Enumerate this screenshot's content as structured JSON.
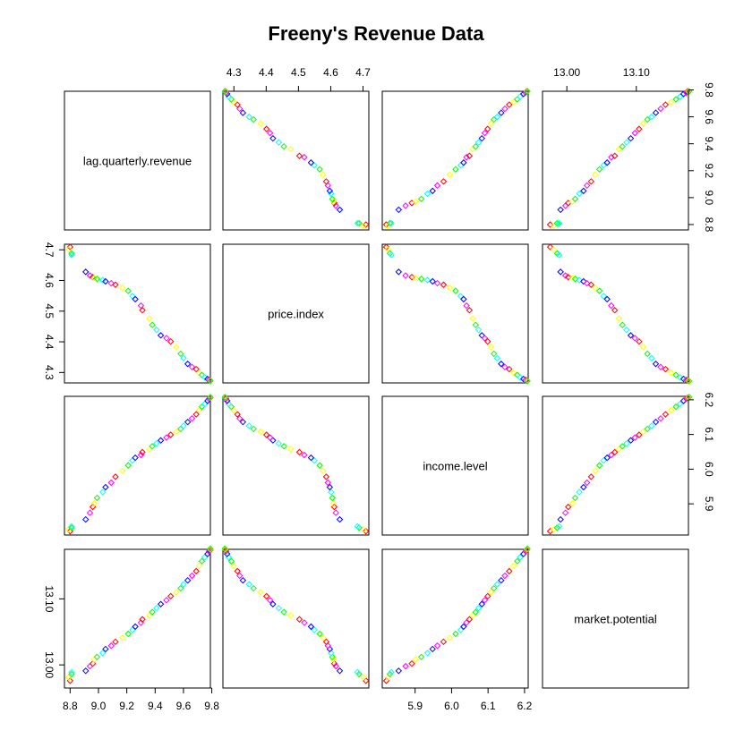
{
  "chart_data": {
    "type": "scatter",
    "title": "Freeny's Revenue Data",
    "variables": [
      "lag.quarterly.revenue",
      "price.index",
      "income.level",
      "market.potential"
    ],
    "ranges": {
      "lag.quarterly.revenue": [
        8.76,
        9.79
      ],
      "price.index": [
        4.266,
        4.718
      ],
      "income.level": [
        5.81,
        6.21
      ],
      "market.potential": [
        12.965,
        13.175
      ]
    },
    "ticks": {
      "lag.quarterly.revenue": [
        8.8,
        9.0,
        9.2,
        9.4,
        9.6,
        9.8
      ],
      "price.index": [
        4.3,
        4.4,
        4.5,
        4.6,
        4.7
      ],
      "income.level": [
        5.9,
        6.0,
        6.1,
        6.2
      ],
      "market.potential": [
        13.0,
        13.1
      ]
    },
    "tick_labels": {
      "lag.quarterly.revenue": [
        "8.8",
        "9.0",
        "9.2",
        "9.4",
        "9.6",
        "9.8"
      ],
      "price.index": [
        "4.3",
        "4.4",
        "4.5",
        "4.6",
        "4.7"
      ],
      "income.level": [
        "5.9",
        "6.0",
        "6.1",
        "6.2"
      ],
      "market.potential": [
        "13.00",
        "13.10"
      ]
    },
    "colors": [
      "#FF0000",
      "#FFFF00",
      "#00FF00",
      "#00FFFF",
      "#0000FF",
      "#FF00FF"
    ],
    "observations": [
      [
        8.8,
        4.709,
        5.821,
        12.976
      ],
      [
        8.79,
        4.701,
        5.826,
        12.981
      ],
      [
        8.81,
        4.688,
        5.831,
        12.986
      ],
      [
        8.81,
        4.683,
        5.835,
        12.989
      ],
      [
        8.91,
        4.628,
        5.855,
        12.991
      ],
      [
        8.94,
        4.616,
        5.874,
        12.998
      ],
      [
        8.96,
        4.611,
        5.891,
        13.002
      ],
      [
        8.97,
        4.608,
        5.901,
        13.008
      ],
      [
        8.99,
        4.605,
        5.917,
        13.012
      ],
      [
        9.03,
        4.601,
        5.934,
        13.018
      ],
      [
        9.05,
        4.597,
        5.948,
        13.024
      ],
      [
        9.09,
        4.591,
        5.961,
        13.029
      ],
      [
        9.12,
        4.586,
        5.978,
        13.035
      ],
      [
        9.17,
        4.576,
        5.995,
        13.041
      ],
      [
        9.21,
        4.566,
        6.011,
        13.047
      ],
      [
        9.24,
        4.549,
        6.025,
        13.053
      ],
      [
        9.26,
        4.539,
        6.033,
        13.058
      ],
      [
        9.3,
        4.518,
        6.041,
        13.064
      ],
      [
        9.31,
        4.503,
        6.049,
        13.069
      ],
      [
        9.36,
        4.476,
        6.058,
        13.075
      ],
      [
        9.38,
        4.455,
        6.066,
        13.08
      ],
      [
        9.41,
        4.439,
        6.074,
        13.086
      ],
      [
        9.44,
        4.421,
        6.083,
        13.092
      ],
      [
        9.48,
        4.412,
        6.091,
        13.098
      ],
      [
        9.51,
        4.401,
        6.099,
        13.104
      ],
      [
        9.55,
        4.383,
        6.108,
        13.11
      ],
      [
        9.58,
        4.361,
        6.116,
        13.116
      ],
      [
        9.6,
        4.347,
        6.125,
        13.122
      ],
      [
        9.63,
        4.328,
        6.136,
        13.128
      ],
      [
        9.66,
        4.318,
        6.146,
        13.135
      ],
      [
        9.69,
        4.311,
        6.158,
        13.142
      ],
      [
        9.71,
        4.299,
        6.17,
        13.15
      ],
      [
        9.73,
        4.292,
        6.18,
        13.157
      ],
      [
        9.75,
        4.284,
        6.188,
        13.163
      ],
      [
        9.77,
        4.279,
        6.197,
        13.168
      ],
      [
        9.78,
        4.276,
        6.203,
        13.172
      ],
      [
        9.79,
        4.274,
        6.206,
        13.174
      ],
      [
        9.79,
        4.273,
        6.207,
        13.175
      ],
      [
        9.79,
        4.272,
        6.208,
        13.176
      ]
    ]
  }
}
